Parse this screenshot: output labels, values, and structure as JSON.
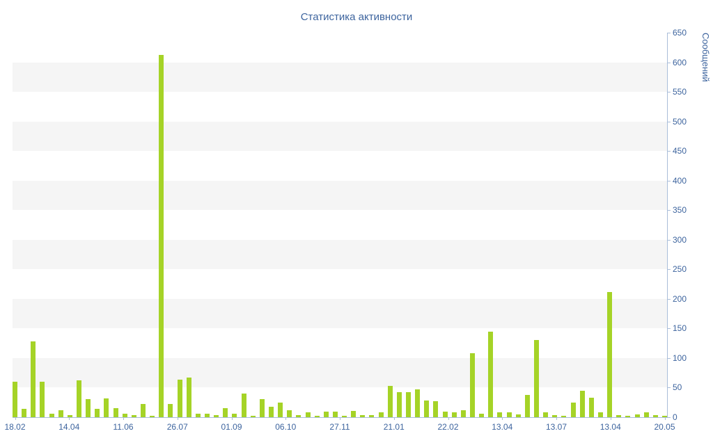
{
  "chart_data": {
    "type": "bar",
    "title": "Статистика активности",
    "ylabel": "Сообщений",
    "xlabel": "",
    "ylim": [
      0,
      650
    ],
    "ytick_interval": 50,
    "grid": "banded",
    "legend_position": "none",
    "x_tick_labels": [
      "18.02",
      "14.04",
      "11.06",
      "26.07",
      "01.09",
      "06.10",
      "27.11",
      "21.01",
      "22.02",
      "13.04",
      "13.07",
      "13.04",
      "20.05"
    ],
    "values": [
      60,
      14,
      128,
      60,
      6,
      12,
      4,
      62,
      30,
      14,
      32,
      15,
      6,
      3,
      22,
      2,
      612,
      22,
      63,
      67,
      6,
      6,
      3,
      15,
      6,
      40,
      2,
      30,
      18,
      25,
      12,
      4,
      8,
      2,
      9,
      9,
      2,
      11,
      3,
      3,
      8,
      53,
      42,
      42,
      47,
      28,
      27,
      10,
      8,
      12,
      108,
      6,
      145,
      8,
      8,
      5,
      38,
      130,
      8,
      3,
      2,
      25,
      45,
      33,
      8,
      212,
      3,
      2,
      5,
      8,
      3,
      2
    ],
    "grid_bands": [
      [
        50,
        100
      ],
      [
        150,
        200
      ],
      [
        250,
        300
      ],
      [
        350,
        400
      ],
      [
        450,
        500
      ],
      [
        550,
        600
      ]
    ],
    "colors": {
      "bar": "#a5d327",
      "text": "#3d649e",
      "axis": "#a9bdd9",
      "stripe": "#f5f5f5",
      "background": "#ffffff"
    }
  }
}
